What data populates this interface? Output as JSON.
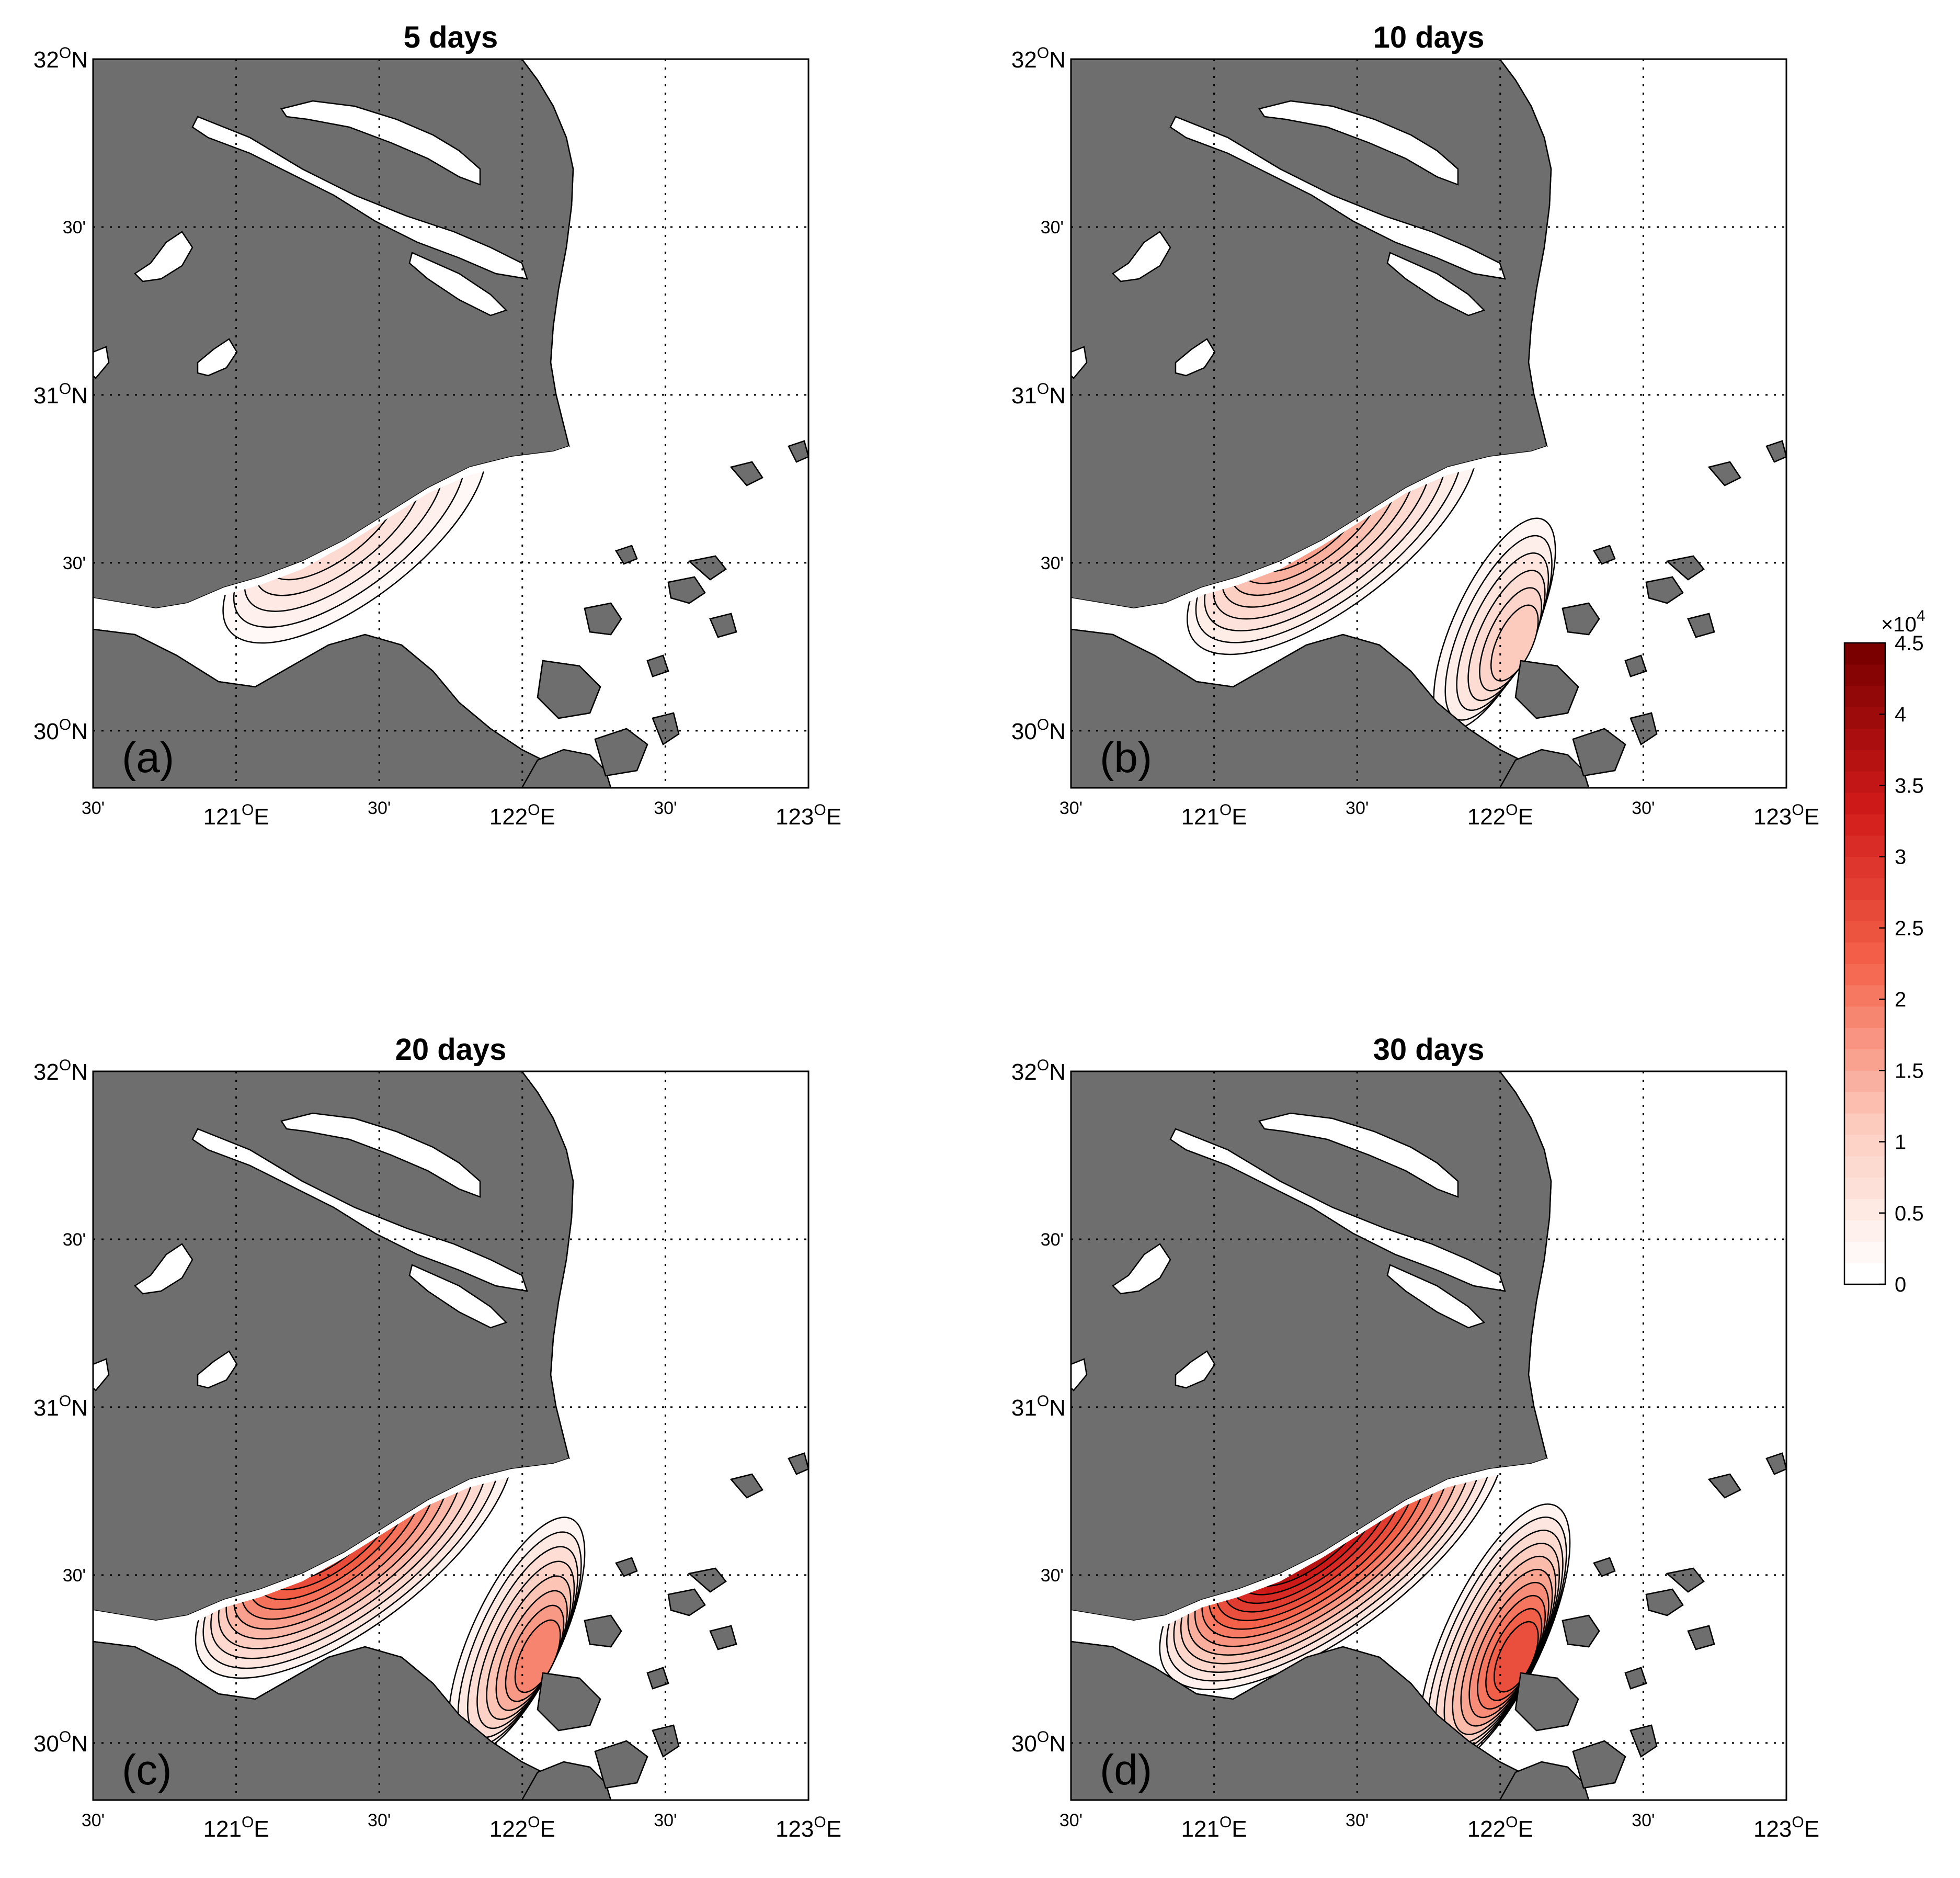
{
  "panels": [
    {
      "id": "a",
      "title": "5 days",
      "letter": "(a)",
      "intensity": 0.2,
      "level": 1
    },
    {
      "id": "b",
      "title": "10 days",
      "letter": "(b)",
      "intensity": 0.4,
      "level": 2
    },
    {
      "id": "c",
      "title": "20 days",
      "letter": "(c)",
      "intensity": 0.7,
      "level": 3
    },
    {
      "id": "d",
      "title": "30 days",
      "letter": "(d)",
      "intensity": 0.95,
      "level": 4
    }
  ],
  "axes": {
    "x_ticks": [
      {
        "value": 120.5,
        "deg": "",
        "min": "30'",
        "hem": ""
      },
      {
        "value": 121.0,
        "deg": "121",
        "min": "",
        "hem": "E"
      },
      {
        "value": 121.5,
        "deg": "",
        "min": "30'",
        "hem": ""
      },
      {
        "value": 122.0,
        "deg": "122",
        "min": "",
        "hem": "E"
      },
      {
        "value": 122.5,
        "deg": "",
        "min": "30'",
        "hem": ""
      },
      {
        "value": 123.0,
        "deg": "123",
        "min": "",
        "hem": "E"
      }
    ],
    "y_ticks": [
      {
        "value": 32.0,
        "deg": "32",
        "min": "",
        "hem": "N"
      },
      {
        "value": 31.5,
        "deg": "",
        "min": "30'",
        "hem": ""
      },
      {
        "value": 31.0,
        "deg": "31",
        "min": "",
        "hem": "N"
      },
      {
        "value": 30.5,
        "deg": "",
        "min": "30'",
        "hem": ""
      },
      {
        "value": 30.0,
        "deg": "30",
        "min": "",
        "hem": "N"
      }
    ],
    "degree_symbol": "O",
    "xlim": [
      120.5,
      123.0
    ],
    "ylim": [
      29.83,
      32.0
    ],
    "grid": true
  },
  "colorbar": {
    "multiplier": "×10",
    "exponent": "4",
    "ticks": [
      "4.5",
      "4",
      "3.5",
      "3",
      "2.5",
      "2",
      "1.5",
      "1",
      "0.5",
      "0"
    ],
    "range": [
      0,
      45000
    ],
    "levels": 30,
    "colormap": "white-to-dark-red",
    "low_color": "#ffffff",
    "high_color": "#7a0000"
  },
  "colors": {
    "land": "#6e6e6e",
    "sea": "#ffffff"
  }
}
